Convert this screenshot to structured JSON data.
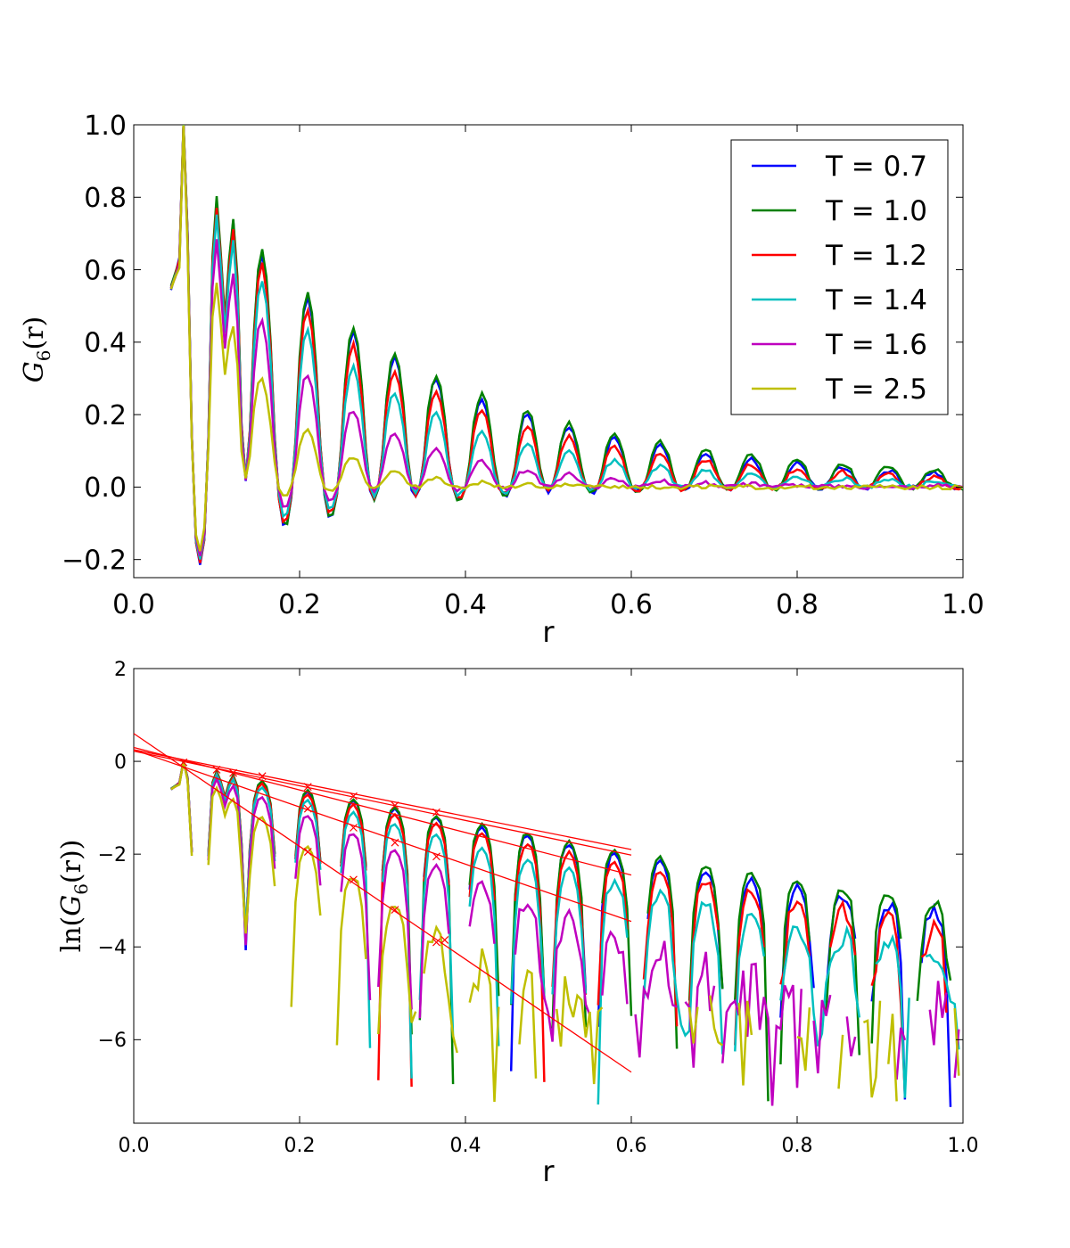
{
  "chart_data": [
    {
      "type": "line",
      "xlabel": "r",
      "ylabel": "G6(r)",
      "ylabel_parts": {
        "symbol": "G",
        "subscript": "6",
        "arg": "(r)"
      },
      "xlim": [
        0.0,
        1.0
      ],
      "ylim": [
        -0.25,
        1.0
      ],
      "xticks": [
        0.0,
        0.2,
        0.4,
        0.6,
        0.8,
        1.0
      ],
      "xtick_labels": [
        "0.0",
        "0.2",
        "0.4",
        "0.6",
        "0.8",
        "1.0"
      ],
      "yticks": [
        -0.2,
        0.0,
        0.2,
        0.4,
        0.6,
        0.8,
        1.0
      ],
      "ytick_labels": [
        "−0.2",
        "0.0",
        "0.2",
        "0.4",
        "0.6",
        "0.8",
        "1.0"
      ],
      "legend_position": "top-right",
      "series_model": "G6(r) = env(r) * osc(r); env(r) = a*exp(-r/xi) + c; peaks at r = 0.06, 0.10, 0.12, 0.155, 0.21, 0.265, 0.315, 0.365, 0.42, ...",
      "series": [
        {
          "name": "T = 0.7",
          "color": "#0000ff",
          "xi": 0.27,
          "tail": 0.008,
          "end_r": 1.0
        },
        {
          "name": "T = 1.0",
          "color": "#008000",
          "xi": 0.27,
          "tail": 0.02,
          "end_r": 1.0
        },
        {
          "name": "T = 1.2",
          "color": "#ff0000",
          "xi": 0.24,
          "tail": 0.01,
          "end_r": 1.0
        },
        {
          "name": "T = 1.4",
          "color": "#00bfbf",
          "xi": 0.2,
          "tail": 0.008,
          "end_r": 1.0
        },
        {
          "name": "T = 1.6",
          "color": "#bf00bf",
          "xi": 0.14,
          "tail": 0.002,
          "end_r": 1.0
        },
        {
          "name": "T = 2.5",
          "color": "#bfbf00",
          "xi": 0.085,
          "tail": 0.0,
          "end_r": 1.0
        }
      ]
    },
    {
      "type": "line",
      "xlabel": "r",
      "ylabel": "ln(G6(r))",
      "ylabel_parts": {
        "fn": "ln(",
        "symbol": "G",
        "subscript": "6",
        "arg": "(r))"
      },
      "xlim": [
        0.0,
        1.0
      ],
      "ylim": [
        -7.8,
        2.0
      ],
      "xticks": [
        0.0,
        0.2,
        0.4,
        0.6,
        0.8,
        1.0
      ],
      "xtick_labels": [
        "0.0",
        "0.2",
        "0.4",
        "0.6",
        "0.8",
        "1.0"
      ],
      "yticks": [
        -6,
        -4,
        -2,
        0,
        2
      ],
      "ytick_labels": [
        "−6",
        "−4",
        "−2",
        "0",
        "2"
      ],
      "fit_lines": [
        {
          "color": "#ff0000",
          "x": [
            0.0,
            0.6
          ],
          "y": [
            0.25,
            -1.9
          ]
        },
        {
          "color": "#ff0000",
          "x": [
            0.0,
            0.6
          ],
          "y": [
            0.22,
            -2.02
          ]
        },
        {
          "color": "#ff0000",
          "x": [
            0.0,
            0.6
          ],
          "y": [
            0.3,
            -2.45
          ]
        },
        {
          "color": "#ff0000",
          "x": [
            0.0,
            0.6
          ],
          "y": [
            0.25,
            -3.45
          ]
        },
        {
          "color": "#ff0000",
          "x": [
            0.0,
            0.6
          ],
          "y": [
            0.6,
            -6.7
          ]
        }
      ],
      "fit_markers": {
        "color": "#ff0000",
        "symbol": "x",
        "points": [
          [
            0.06,
            -0.02
          ],
          [
            0.1,
            -0.18
          ],
          [
            0.12,
            -0.25
          ],
          [
            0.155,
            -0.32
          ],
          [
            0.21,
            -0.55
          ],
          [
            0.265,
            -0.75
          ],
          [
            0.315,
            -0.95
          ],
          [
            0.365,
            -1.1
          ],
          [
            0.21,
            -1.02
          ],
          [
            0.265,
            -1.43
          ],
          [
            0.315,
            -1.75
          ],
          [
            0.365,
            -2.05
          ],
          [
            0.21,
            -1.95
          ],
          [
            0.265,
            -2.55
          ],
          [
            0.315,
            -3.2
          ],
          [
            0.365,
            -3.9
          ],
          [
            0.375,
            -3.85
          ]
        ]
      },
      "series_note": "ln of the same six series as the upper panel (values <= 0 are omitted)"
    }
  ]
}
